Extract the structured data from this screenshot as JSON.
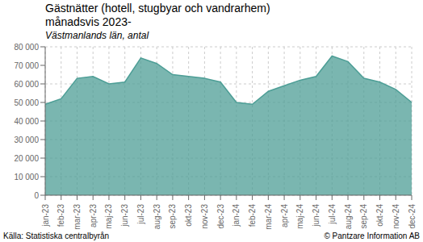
{
  "chart_data": {
    "type": "area",
    "title": [
      "Gästnätter (hotell, stugbyar och vandrarhem)",
      "månadsvis 2023-"
    ],
    "subtitle": "Västmanlands län, antal",
    "categories": [
      "jan-23",
      "feb-23",
      "mar-23",
      "apr-23",
      "maj-23",
      "jun-23",
      "jul-23",
      "aug-23",
      "sep-23",
      "okt-23",
      "nov-23",
      "dec-23",
      "jan-24",
      "feb-24",
      "mar-24",
      "apr-24",
      "maj-24",
      "jun-24",
      "jul-24",
      "aug-24",
      "sep-24",
      "okt-24",
      "nov-24",
      "dec-24"
    ],
    "values": [
      49000,
      52000,
      63000,
      64000,
      60000,
      61000,
      74000,
      71000,
      65000,
      64000,
      63000,
      61000,
      50000,
      49000,
      56000,
      59000,
      62000,
      64000,
      75000,
      72000,
      63000,
      61000,
      57000,
      50000
    ],
    "color": "#4d9e96",
    "ylim": [
      0,
      80000
    ],
    "yticks": [
      0,
      {
        "value": 10000,
        "label": "10 000"
      },
      {
        "value": 20000,
        "label": "20 000"
      },
      {
        "value": 30000,
        "label": "30 000"
      },
      {
        "value": 40000,
        "label": "40 000"
      },
      {
        "value": 50000,
        "label": "50 000"
      },
      {
        "value": 60000,
        "label": "60 000"
      },
      {
        "value": 70000,
        "label": "70 000"
      },
      {
        "value": 80000,
        "label": "80 000"
      }
    ],
    "grid": true,
    "annotations": [
      "Källa: Statistiska centralbyrån",
      "© Pantzare Information AB"
    ]
  }
}
